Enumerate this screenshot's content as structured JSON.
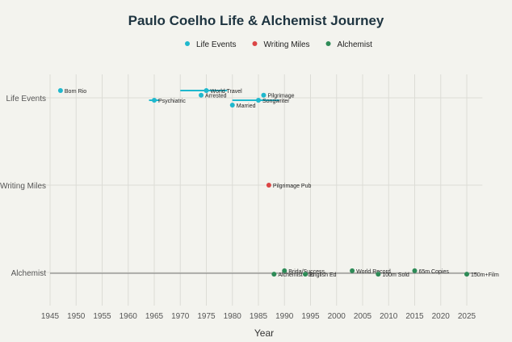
{
  "chart_data": {
    "type": "scatter",
    "title": "Paulo Coelho Life & Alchemist Journey",
    "xlabel": "Year",
    "ylabel": "",
    "xlim": [
      1943,
      2028
    ],
    "xticks": [
      1945,
      1950,
      1955,
      1960,
      1965,
      1970,
      1975,
      1980,
      1985,
      1990,
      1995,
      2000,
      2005,
      2010,
      2015,
      2020,
      2025
    ],
    "categories": [
      "Life Events",
      "Writing Miles",
      "Alchemist"
    ],
    "grid": true,
    "legend": "top",
    "series": [
      {
        "name": "Life Events",
        "color": "#1fb8cd",
        "points": [
          {
            "x": 1947,
            "label": "Born Rio",
            "offset": 0.3
          },
          {
            "x": 1965,
            "label": "Psychiatric",
            "offset": -0.1,
            "range": [
              1964,
              1966
            ]
          },
          {
            "x": 1974,
            "label": "Arrested",
            "offset": 0.11
          },
          {
            "x": 1975,
            "label": "World Travel",
            "offset": 0.3,
            "range": [
              1970,
              1979
            ]
          },
          {
            "x": 1980,
            "label": "Married",
            "offset": -0.3
          },
          {
            "x": 1985,
            "label": "Songwriter",
            "offset": -0.1,
            "range": [
              1980,
              1989
            ]
          },
          {
            "x": 1986,
            "label": "Pilgrimage",
            "offset": 0.11
          }
        ]
      },
      {
        "name": "Writing Miles",
        "color": "#db4545",
        "points": [
          {
            "x": 1987,
            "label": "Pilgrimage Pub",
            "offset": 0
          }
        ]
      },
      {
        "name": "Alchemist",
        "color": "#2e8b57",
        "points": [
          {
            "x": 1988,
            "label": "Alchemist Pub",
            "offset": -0.07,
            "range": [
              1945,
              2027
            ]
          },
          {
            "x": 1990,
            "label": "Brida/Success",
            "offset": 0.07
          },
          {
            "x": 1994,
            "label": "English Ed",
            "offset": -0.07
          },
          {
            "x": 2003,
            "label": "World Record",
            "offset": 0.07
          },
          {
            "x": 2008,
            "label": "100m Sold",
            "offset": -0.07
          },
          {
            "x": 2015,
            "label": "65m Copies",
            "offset": 0.07
          },
          {
            "x": 2025,
            "label": "150m+Film",
            "offset": -0.07
          }
        ]
      }
    ]
  }
}
